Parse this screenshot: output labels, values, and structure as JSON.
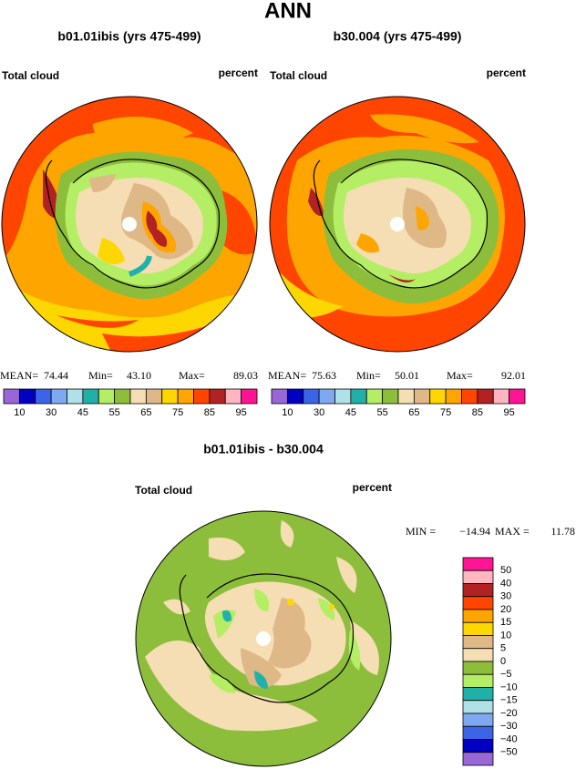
{
  "title": "ANN",
  "panels": [
    {
      "title": "b01.01ibis (yrs 475-499)",
      "field": "Total cloud",
      "units": "percent",
      "stats": [
        {
          "label": "MEAN=",
          "value": "74.44"
        },
        {
          "label": "Min=",
          "value": "43.10"
        },
        {
          "label": "Max=",
          "value": "89.03"
        }
      ]
    },
    {
      "title": "b30.004 (yrs 475-499)",
      "field": "Total cloud",
      "units": "percent",
      "stats": [
        {
          "label": "MEAN=",
          "value": "75.63"
        },
        {
          "label": "Min=",
          "value": "50.01"
        },
        {
          "label": "Max=",
          "value": "92.01"
        }
      ]
    }
  ],
  "colorbar": {
    "colors": [
      "#9966d8",
      "#0000c0",
      "#3c64e6",
      "#80a8f0",
      "#b0e0e8",
      "#20b0a8",
      "#b4ee64",
      "#8cbe3c",
      "#f5deb3",
      "#deb887",
      "#ffd700",
      "#ffa500",
      "#ff4500",
      "#b22222",
      "#ffb6c1",
      "#ff1493"
    ],
    "labels": [
      "10",
      "30",
      "45",
      "55",
      "65",
      "75",
      "85",
      "95"
    ]
  },
  "difference": {
    "title": "b01.01ibis - b30.004",
    "field": "Total cloud",
    "units": "percent",
    "stats": [
      {
        "label": "MIN =",
        "value": "−14.94"
      },
      {
        "label": "MAX =",
        "value": "11.78"
      }
    ],
    "colorbar": {
      "colors": [
        "#ff1493",
        "#ffb6c1",
        "#b22222",
        "#ff4500",
        "#ffa500",
        "#ffd700",
        "#deb887",
        "#f5deb3",
        "#8cbe3c",
        "#b4ee64",
        "#20b0a8",
        "#b0e0e8",
        "#80a8f0",
        "#3c64e6",
        "#0000c0",
        "#9966d8"
      ],
      "labels": [
        "50",
        "40",
        "30",
        "20",
        "15",
        "10",
        "5",
        "0",
        "−5",
        "−10",
        "−15",
        "−20",
        "−30",
        "−40",
        "−50"
      ]
    }
  }
}
